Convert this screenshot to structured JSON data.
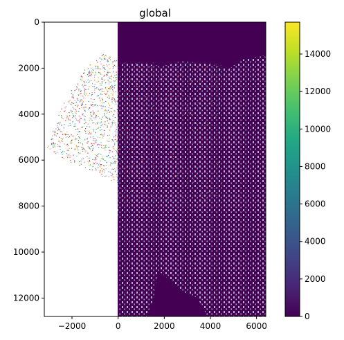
{
  "chart_data": {
    "type": "heatmap",
    "title": "global",
    "xlabel": "",
    "ylabel": "",
    "xlim": [
      -3200,
      6400
    ],
    "ylim": [
      12800,
      0
    ],
    "y_inverted": true,
    "xticks": [
      -2000,
      0,
      2000,
      4000,
      6000
    ],
    "xtick_labels": [
      "−2000",
      "0",
      "2000",
      "4000",
      "6000"
    ],
    "yticks": [
      0,
      2000,
      4000,
      6000,
      8000,
      10000,
      12000
    ],
    "ytick_labels": [
      "0",
      "2000",
      "4000",
      "6000",
      "8000",
      "10000",
      "12000"
    ],
    "image_extent": {
      "x": [
        0,
        6400
      ],
      "y": [
        0,
        12800
      ]
    },
    "colorbar": {
      "colormap": "viridis",
      "range": [
        0,
        15700
      ],
      "ticks": [
        0,
        2000,
        4000,
        6000,
        8000,
        10000,
        12000,
        14000
      ],
      "tick_labels": [
        "0",
        "2000",
        "4000",
        "6000",
        "8000",
        "10000",
        "12000",
        "14000"
      ]
    },
    "overlay": {
      "kind": "scatter points (cell centroids)",
      "colors": "multicolor",
      "approx_extent": {
        "x": [
          -3000,
          6400
        ],
        "y": [
          1300,
          12800
        ]
      }
    },
    "grid": false,
    "legend": "none"
  },
  "colors": {
    "background": "#440154",
    "viridis_low": "#440154",
    "viridis_high": "#fde725",
    "cell_marker": "#c8d0e8"
  }
}
